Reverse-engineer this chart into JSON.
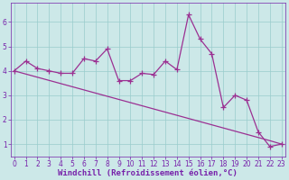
{
  "x": [
    0,
    1,
    2,
    3,
    4,
    5,
    6,
    7,
    8,
    9,
    10,
    11,
    12,
    13,
    14,
    15,
    16,
    17,
    18,
    19,
    20,
    21,
    22,
    23
  ],
  "y_main": [
    4.0,
    4.4,
    4.1,
    4.0,
    3.9,
    3.9,
    4.5,
    4.4,
    4.9,
    3.6,
    3.6,
    3.9,
    3.85,
    4.4,
    4.05,
    6.3,
    5.3,
    4.7,
    2.5,
    3.0,
    2.8,
    1.5,
    0.9,
    1.0
  ],
  "y_trend": [
    4.0,
    3.87,
    3.74,
    3.61,
    3.48,
    3.35,
    3.22,
    3.09,
    2.96,
    2.83,
    2.7,
    2.57,
    2.44,
    2.31,
    2.18,
    2.05,
    1.92,
    1.79,
    1.66,
    1.53,
    1.4,
    1.27,
    1.14,
    1.0
  ],
  "line_color": "#9b3092",
  "marker": "+",
  "markersize": 4,
  "linewidth": 0.9,
  "bg_color": "#cce8e8",
  "grid_color": "#99cccc",
  "xlabel": "Windchill (Refroidissement éolien,°C)",
  "ylabel": "",
  "ylim": [
    0.5,
    6.8
  ],
  "yticks": [
    1,
    2,
    3,
    4,
    5,
    6
  ],
  "xticks": [
    0,
    1,
    2,
    3,
    4,
    5,
    6,
    7,
    8,
    9,
    10,
    11,
    12,
    13,
    14,
    15,
    16,
    17,
    18,
    19,
    20,
    21,
    22,
    23
  ],
  "tick_fontsize": 5.5,
  "xlabel_fontsize": 6.5,
  "tick_color": "#7722aa",
  "xlabel_color": "#7722aa",
  "axis_color": "#7722aa"
}
